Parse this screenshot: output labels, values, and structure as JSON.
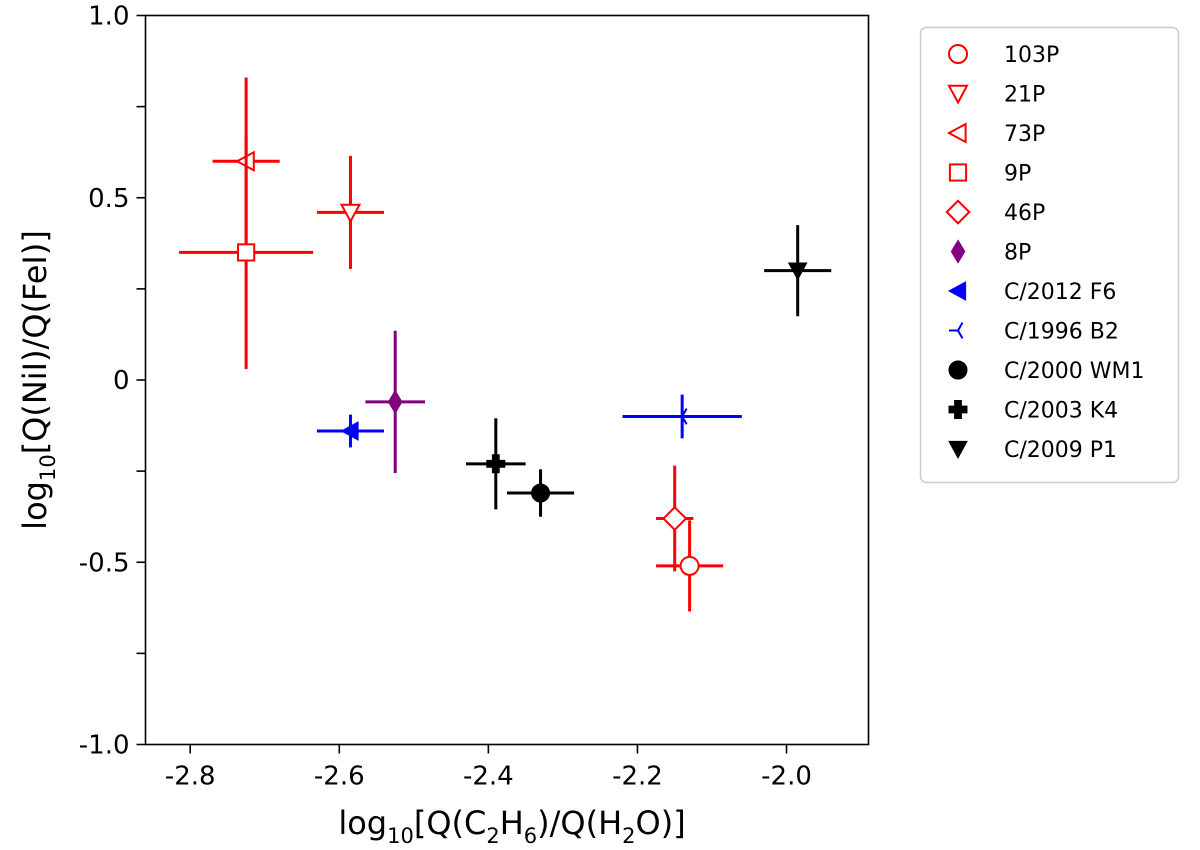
{
  "chart_data": {
    "type": "scatter",
    "title": "",
    "xlabel": {
      "prefix": "log",
      "sub": "10",
      "pre": "[Q(C",
      "c_sub": "2",
      "mid": "H",
      "h_sub": "6",
      "post": ")/Q(H",
      "o_sub": "2",
      "end": "O)]"
    },
    "ylabel": {
      "prefix": "log",
      "sub": "10",
      "rest": "[Q(NiI)/Q(FeI)]"
    },
    "xlim": [
      -2.86,
      -1.89
    ],
    "ylim": [
      -1.0,
      1.0
    ],
    "xticks": [
      {
        "value": -2.8,
        "label": "-2.8"
      },
      {
        "value": -2.6,
        "label": "-2.6"
      },
      {
        "value": -2.4,
        "label": "-2.4"
      },
      {
        "value": -2.2,
        "label": "-2.2"
      },
      {
        "value": -2.0,
        "label": "-2.0"
      }
    ],
    "yticks": [
      {
        "value": 1.0,
        "label": "1.0"
      },
      {
        "value": 0.5,
        "label": "0.5"
      },
      {
        "value": 0.0,
        "label": "0"
      },
      {
        "value": -0.5,
        "label": "-0.5"
      },
      {
        "value": -1.0,
        "label": "-1.0"
      }
    ],
    "y_minor_step": 0.25,
    "legend_position": "outside-right",
    "series": [
      {
        "name": "103P",
        "marker": "circle-open",
        "color": "#ff0000",
        "x": -2.13,
        "y": -0.51,
        "xerr": 0.045,
        "yerr": 0.125
      },
      {
        "name": "21P",
        "marker": "triangle-down-open",
        "color": "#ff0000",
        "x": -2.585,
        "y": 0.46,
        "xerr": 0.045,
        "yerr": 0.155
      },
      {
        "name": "73P",
        "marker": "triangle-left-open",
        "color": "#ff0000",
        "x": -2.725,
        "y": 0.6,
        "xerr": 0.045,
        "yerr": 0.23
      },
      {
        "name": "9P",
        "marker": "square-open",
        "color": "#ff0000",
        "x": -2.725,
        "y": 0.35,
        "xerr": 0.09,
        "yerr": 0.32
      },
      {
        "name": "46P",
        "marker": "diamond-open",
        "color": "#ff0000",
        "x": -2.15,
        "y": -0.38,
        "xerr": 0.025,
        "yerr": 0.145
      },
      {
        "name": "8P",
        "marker": "diamond-thin-filled",
        "color": "#800080",
        "x": -2.525,
        "y": -0.06,
        "xerr": 0.04,
        "yerr": 0.195
      },
      {
        "name": "C/2012 F6",
        "marker": "triangle-left-filled",
        "color": "#0000ff",
        "x": -2.585,
        "y": -0.14,
        "xerr": 0.045,
        "yerr": 0.045
      },
      {
        "name": "C/1996 B2",
        "marker": "tri-left",
        "color": "#0000ff",
        "x": -2.14,
        "y": -0.1,
        "xerr": 0.08,
        "yerr": 0.06
      },
      {
        "name": "C/2000 WM1",
        "marker": "circle-filled",
        "color": "#000000",
        "x": -2.33,
        "y": -0.31,
        "xerr": 0.045,
        "yerr": 0.065
      },
      {
        "name": "C/2003 K4",
        "marker": "plus-filled",
        "color": "#000000",
        "x": -2.39,
        "y": -0.23,
        "xerr": 0.04,
        "yerr": 0.125
      },
      {
        "name": "C/2009 P1",
        "marker": "triangle-down-filled",
        "color": "#000000",
        "x": -1.985,
        "y": 0.3,
        "xerr": 0.045,
        "yerr": 0.125
      }
    ]
  }
}
